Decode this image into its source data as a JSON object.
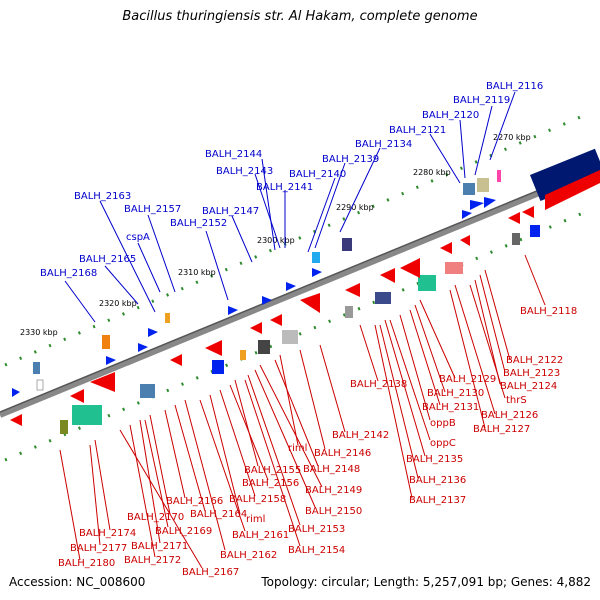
{
  "title": "Bacillus thuringiensis str. Al Hakam, complete genome",
  "accession": "Accession: NC_008600",
  "summary": "Topology: circular; Length: 5,257,091 bp; Genes: 4,882",
  "ticks": [
    "2270 kbp",
    "2280 kbp",
    "2290 kbp",
    "2300 kbp",
    "2310 kbp",
    "2320 kbp",
    "2330 kbp"
  ],
  "upper_labels": [
    "BALH_2116",
    "BALH_2119",
    "BALH_2120",
    "BALH_2121",
    "BALH_2134",
    "BALH_2139",
    "BALH_2140",
    "BALH_2144",
    "BALH_2143",
    "BALH_2141",
    "BALH_2147",
    "BALH_2152",
    "BALH_2157",
    "cspA",
    "BALH_2163",
    "BALH_2165",
    "BALH_2168"
  ],
  "lower_labels": [
    "BALH_2118",
    "BALH_2122",
    "BALH_2123",
    "BALH_2124",
    "thrS",
    "BALH_2126",
    "BALH_2127",
    "BALH_2129",
    "BALH_2130",
    "BALH_2131",
    "oppB",
    "oppC",
    "BALH_2135",
    "BALH_2136",
    "BALH_2137",
    "BALH_2138",
    "BALH_2142",
    "BALH_2146",
    "riml",
    "BALH_2148",
    "BALH_2149",
    "BALH_2150",
    "BALH_2153",
    "BALH_2154",
    "BALH_2155",
    "BALH_2156",
    "BALH_2158",
    "riml",
    "BALH_2161",
    "BALH_2162",
    "BALH_2164",
    "BALH_2166",
    "BALH_2170",
    "BALH_2169",
    "BALH_2171",
    "BALH_2172",
    "BALH_2167",
    "BALH_2174",
    "BALH_2177",
    "BALH_2180"
  ]
}
